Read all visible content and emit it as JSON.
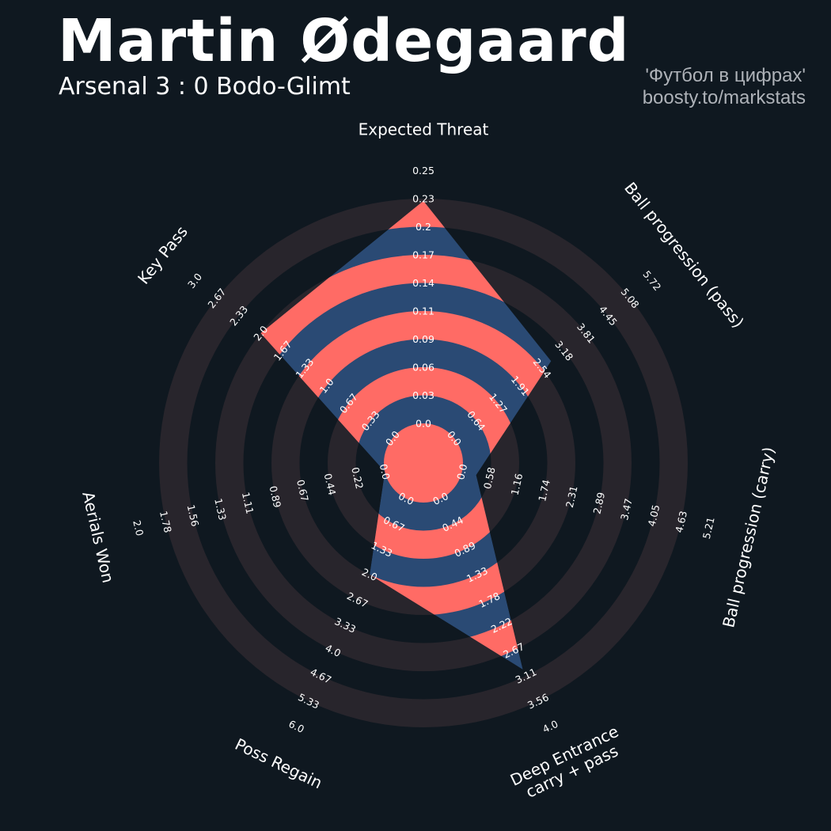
{
  "header": {
    "title": "Martin Ødegaard",
    "subtitle": "Arsenal 3 : 0 Bodo-Glimt",
    "credit_line_1": "'Футбол в цифрах'",
    "credit_line_2": "boosty.to/markstats"
  },
  "chart_data": {
    "type": "radar",
    "colors": {
      "background": "#0f1820",
      "ring_bands": "#28252c",
      "value_fill_a": "#ff6b65",
      "value_fill_b": "#2a4a74",
      "text": "#ffffff"
    },
    "parameters": [
      {
        "label": "Expected Threat",
        "value": 0.22,
        "ticks": [
          "0.0",
          "0.03",
          "0.06",
          "0.09",
          "0.11",
          "0.14",
          "0.17",
          "0.2",
          "0.23",
          "0.25"
        ]
      },
      {
        "label": "Ball progression (pass)",
        "value": 2.8,
        "ticks": [
          "0.0",
          "0.64",
          "1.27",
          "1.91",
          "2.54",
          "3.18",
          "3.81",
          "4.45",
          "5.08",
          "5.72"
        ]
      },
      {
        "label": "Ball progression (carry)",
        "value": 0.3,
        "ticks": [
          "0.0",
          "0.58",
          "1.16",
          "1.74",
          "2.31",
          "2.89",
          "3.47",
          "4.05",
          "4.63",
          "5.21"
        ]
      },
      {
        "label": "Deep Entrance\ncarry + pass",
        "value": 3.0,
        "ticks": [
          "0.0",
          "0.44",
          "0.89",
          "1.33",
          "1.78",
          "2.22",
          "2.67",
          "3.11",
          "3.56",
          "4.0"
        ]
      },
      {
        "label": "Poss Regain",
        "value": 2.0,
        "ticks": [
          "0.0",
          "0.67",
          "1.33",
          "2.0",
          "2.67",
          "3.33",
          "4.0",
          "4.67",
          "5.33",
          "6.0"
        ]
      },
      {
        "label": "Aerials Won",
        "value": 0.0,
        "ticks": [
          "0.0",
          "0.22",
          "0.44",
          "0.67",
          "0.89",
          "1.11",
          "1.33",
          "1.56",
          "1.78",
          "2.0"
        ]
      },
      {
        "label": "Key Pass",
        "value": 2.0,
        "ticks": [
          "0.0",
          "0.33",
          "0.67",
          "1.0",
          "1.33",
          "1.67",
          "2.0",
          "2.33",
          "2.67",
          "3.0"
        ]
      }
    ]
  }
}
